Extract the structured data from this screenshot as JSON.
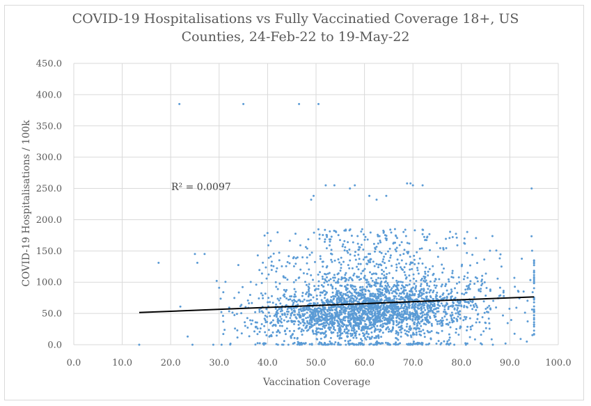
{
  "chart_data": {
    "type": "scatter",
    "title_line1": "COVID-19 Hospitalisations vs Fully Vaccinatied Coverage 18+, US",
    "title_line2": "Counties, 24-Feb-22 to 19-May-22",
    "xlabel": "Vaccination Coverage",
    "ylabel": "COVID-19 Hospitalisations / 100k",
    "xlim": [
      0,
      100
    ],
    "ylim": [
      0,
      450
    ],
    "x_ticks": [
      "0.0",
      "10.0",
      "20.0",
      "30.0",
      "40.0",
      "50.0",
      "60.0",
      "70.0",
      "80.0",
      "90.0",
      "100.0"
    ],
    "y_ticks": [
      "0.0",
      "50.0",
      "100.0",
      "150.0",
      "200.0",
      "250.0",
      "300.0",
      "350.0",
      "400.0",
      "450.0"
    ],
    "grid": true,
    "legend": "none",
    "marker_color": "#5b9bd5",
    "trendline": {
      "type": "linear",
      "x_start": 13.5,
      "x_end": 95,
      "y_start": 51.5,
      "y_end": 76.5,
      "color": "#000000"
    },
    "annotation": "R² = 0.0097",
    "point_count_approx": 3000,
    "notable_points": [
      {
        "x": 21.8,
        "y": 385
      },
      {
        "x": 35,
        "y": 385
      },
      {
        "x": 46.5,
        "y": 385
      },
      {
        "x": 50.5,
        "y": 385
      },
      {
        "x": 49,
        "y": 232
      },
      {
        "x": 49.5,
        "y": 238
      },
      {
        "x": 52,
        "y": 255
      },
      {
        "x": 53.8,
        "y": 255
      },
      {
        "x": 57,
        "y": 250
      },
      {
        "x": 58,
        "y": 255
      },
      {
        "x": 61,
        "y": 238
      },
      {
        "x": 62.5,
        "y": 232
      },
      {
        "x": 64.5,
        "y": 238
      },
      {
        "x": 68.8,
        "y": 258
      },
      {
        "x": 69.5,
        "y": 258
      },
      {
        "x": 70,
        "y": 255
      },
      {
        "x": 72,
        "y": 255
      },
      {
        "x": 94.5,
        "y": 250
      },
      {
        "x": 17.5,
        "y": 131
      },
      {
        "x": 22,
        "y": 61
      },
      {
        "x": 23.5,
        "y": 13
      },
      {
        "x": 24.5,
        "y": 0
      },
      {
        "x": 25,
        "y": 145
      },
      {
        "x": 25.5,
        "y": 131
      },
      {
        "x": 27,
        "y": 145
      },
      {
        "x": 13.5,
        "y": 0
      },
      {
        "x": 28.8,
        "y": 0
      },
      {
        "x": 29.5,
        "y": 102
      },
      {
        "x": 30,
        "y": 91
      },
      {
        "x": 30.5,
        "y": 0
      },
      {
        "x": 86.5,
        "y": 0
      },
      {
        "x": 93.5,
        "y": 5
      }
    ]
  }
}
